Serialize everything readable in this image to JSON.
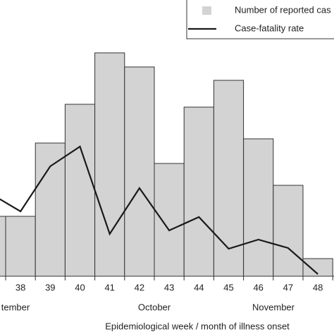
{
  "chart_data": {
    "type": "bar",
    "categories": [
      null,
      "38",
      "39",
      "40",
      "41",
      "42",
      "43",
      "44",
      "45",
      "46",
      "47",
      "48"
    ],
    "month_labels": [
      "tember",
      "October",
      "November"
    ],
    "x_label": "Epidemiological week / month of illness onset",
    "ylim": [
      0,
      320
    ],
    "series": [
      {
        "name": "Number of reported cas",
        "type": "bar",
        "color": "#d3d3d3",
        "values": [
          85,
          85,
          189,
          244,
          317,
          297,
          160,
          240,
          278,
          195,
          129,
          25
        ]
      },
      {
        "name": "Case-fatality rate",
        "type": "line",
        "color": "#1a1a1a",
        "values": [
          117,
          92,
          156,
          184,
          60,
          125,
          65,
          84,
          39,
          52,
          40,
          3
        ]
      }
    ]
  }
}
